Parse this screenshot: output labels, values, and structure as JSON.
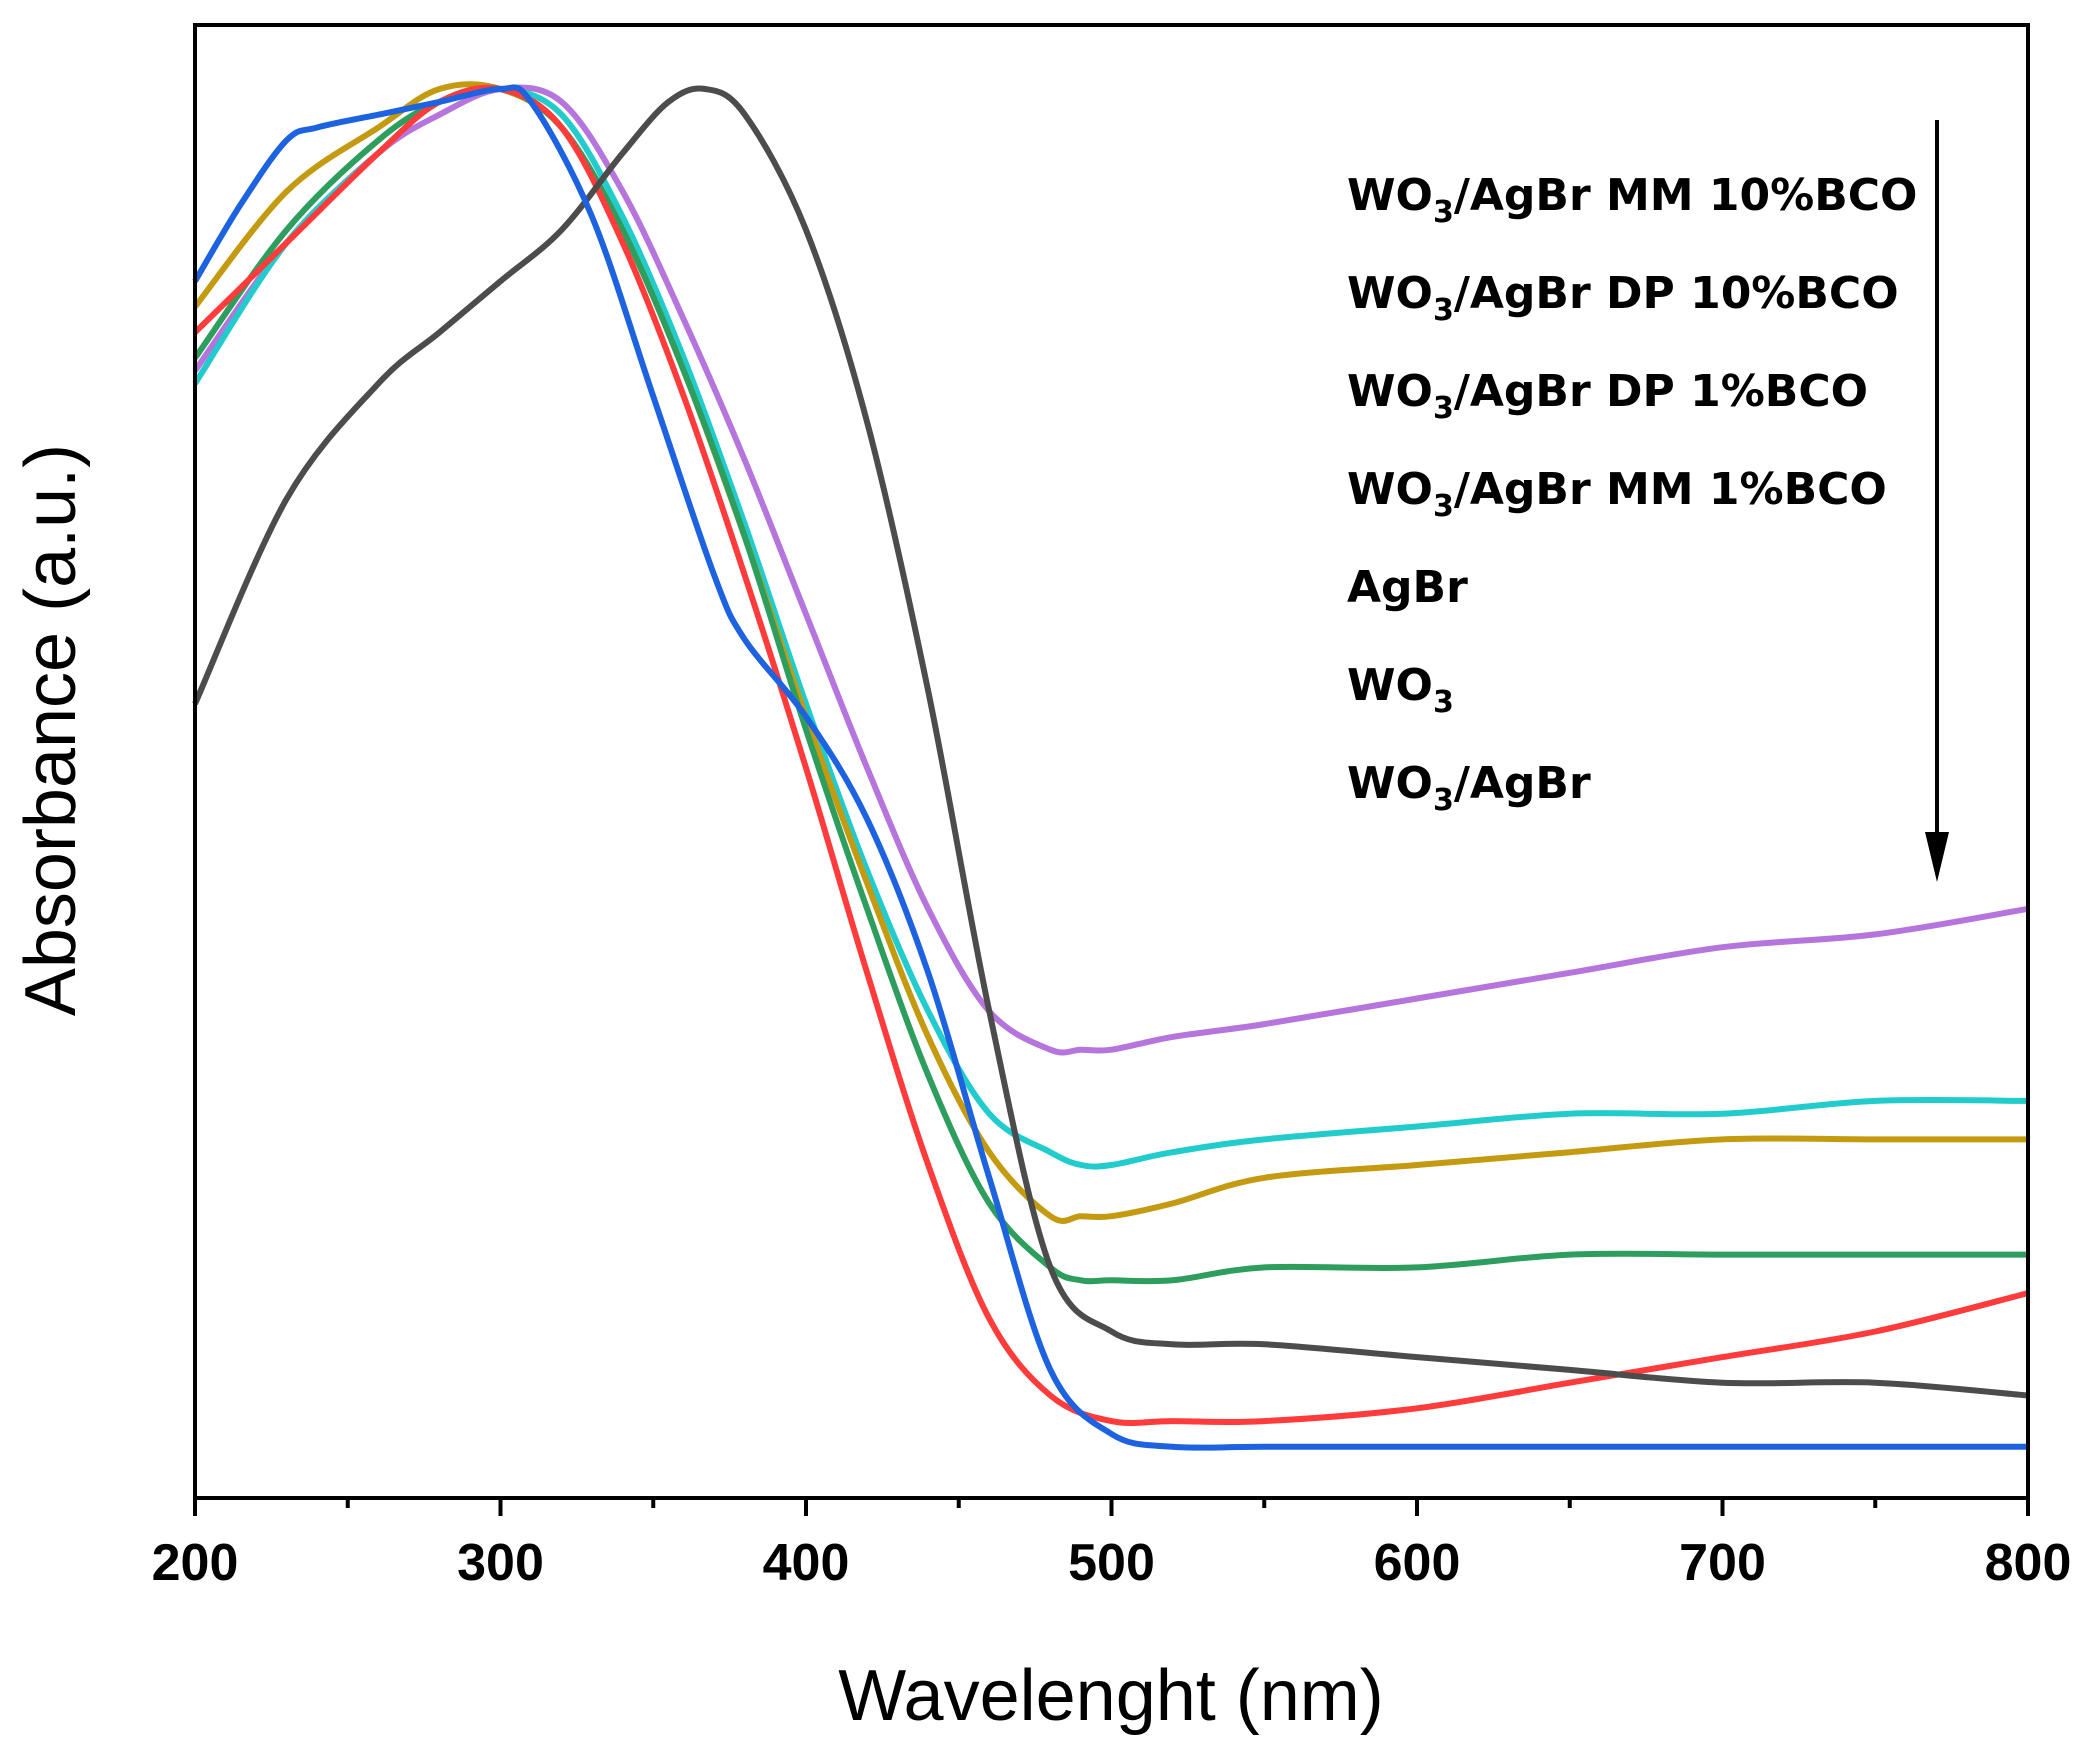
{
  "chart_data": {
    "type": "line",
    "title": "",
    "xlabel": "Wavelenght (nm)",
    "ylabel": "Absorbance (a.u.)",
    "xlim": [
      200,
      800
    ],
    "ylim": [
      0,
      1.15
    ],
    "x_ticks": [
      "200",
      "300",
      "400",
      "500",
      "600",
      "700",
      "800"
    ],
    "y_ticks": [],
    "grid": false,
    "legend_position": "top-right",
    "legend_arrow": "down",
    "legend_entries": [
      {
        "main": "WO",
        "sub": "3",
        "rest": "/AgBr MM 10%BCO"
      },
      {
        "main": "WO",
        "sub": "3",
        "rest": "/AgBr DP 10%BCO"
      },
      {
        "main": "WO",
        "sub": "3",
        "rest": "/AgBr DP 1%BCO"
      },
      {
        "main": "WO",
        "sub": "3",
        "rest": "/AgBr MM 1%BCO"
      },
      {
        "main": "AgBr",
        "sub": "",
        "rest": ""
      },
      {
        "main": "WO",
        "sub": "3",
        "rest": ""
      },
      {
        "main": "WO",
        "sub": "3",
        "rest": "/AgBr"
      }
    ],
    "series": [
      {
        "name": "WO3/AgBr MM 10%BCO",
        "color": "#b575dc",
        "x": [
          200,
          230,
          260,
          280,
          300,
          320,
          340,
          360,
          380,
          400,
          420,
          440,
          460,
          480,
          490,
          500,
          520,
          550,
          600,
          650,
          700,
          750,
          800
        ],
        "y": [
          0.88,
          0.98,
          1.05,
          1.08,
          1.1,
          1.09,
          1.02,
          0.92,
          0.81,
          0.69,
          0.57,
          0.46,
          0.38,
          0.35,
          0.35,
          0.35,
          0.36,
          0.37,
          0.39,
          0.41,
          0.43,
          0.44,
          0.46
        ]
      },
      {
        "name": "WO3/AgBr DP 10%BCO",
        "color": "#22cccc",
        "x": [
          200,
          230,
          260,
          280,
          300,
          320,
          340,
          360,
          380,
          400,
          420,
          440,
          460,
          480,
          490,
          500,
          520,
          550,
          600,
          650,
          700,
          750,
          800
        ],
        "y": [
          0.87,
          0.98,
          1.05,
          1.09,
          1.1,
          1.08,
          1.0,
          0.89,
          0.76,
          0.62,
          0.49,
          0.38,
          0.3,
          0.27,
          0.26,
          0.26,
          0.27,
          0.28,
          0.29,
          0.3,
          0.3,
          0.31,
          0.31
        ]
      },
      {
        "name": "WO3/AgBr DP 1%BCO",
        "color": "#c49a10",
        "x": [
          200,
          230,
          260,
          280,
          300,
          320,
          340,
          360,
          380,
          400,
          420,
          440,
          460,
          480,
          490,
          500,
          520,
          550,
          600,
          650,
          700,
          750,
          800
        ],
        "y": [
          0.93,
          1.02,
          1.07,
          1.1,
          1.1,
          1.07,
          0.99,
          0.88,
          0.75,
          0.61,
          0.48,
          0.36,
          0.27,
          0.22,
          0.22,
          0.22,
          0.23,
          0.25,
          0.26,
          0.27,
          0.28,
          0.28,
          0.28
        ]
      },
      {
        "name": "WO3/AgBr MM 1%BCO",
        "color": "#2e9e5e",
        "x": [
          200,
          230,
          260,
          280,
          300,
          320,
          340,
          360,
          380,
          400,
          420,
          440,
          460,
          480,
          490,
          500,
          520,
          550,
          600,
          650,
          700,
          750,
          800
        ],
        "y": [
          0.89,
          0.99,
          1.06,
          1.09,
          1.1,
          1.07,
          0.99,
          0.88,
          0.75,
          0.6,
          0.46,
          0.33,
          0.23,
          0.18,
          0.17,
          0.17,
          0.17,
          0.18,
          0.18,
          0.19,
          0.19,
          0.19,
          0.19
        ]
      },
      {
        "name": "AgBr",
        "color": "#ff3b3b",
        "x": [
          200,
          230,
          260,
          280,
          300,
          320,
          340,
          360,
          380,
          400,
          420,
          440,
          460,
          480,
          500,
          520,
          550,
          600,
          650,
          700,
          750,
          800
        ],
        "y": [
          0.91,
          0.98,
          1.05,
          1.09,
          1.1,
          1.07,
          0.98,
          0.86,
          0.72,
          0.57,
          0.41,
          0.26,
          0.14,
          0.08,
          0.06,
          0.06,
          0.06,
          0.07,
          0.09,
          0.11,
          0.13,
          0.16
        ]
      },
      {
        "name": "WO3",
        "color": "#4c4c4c",
        "x": [
          200,
          230,
          260,
          280,
          300,
          320,
          340,
          355,
          367,
          380,
          400,
          420,
          440,
          460,
          480,
          500,
          520,
          550,
          600,
          650,
          700,
          750,
          800
        ],
        "y": [
          0.62,
          0.78,
          0.87,
          0.91,
          0.95,
          0.99,
          1.05,
          1.09,
          1.1,
          1.08,
          0.99,
          0.84,
          0.63,
          0.38,
          0.18,
          0.13,
          0.12,
          0.12,
          0.11,
          0.1,
          0.09,
          0.09,
          0.08
        ]
      },
      {
        "name": "WO3/AgBr",
        "color": "#1d63e0",
        "x": [
          200,
          215,
          230,
          240,
          260,
          280,
          300,
          310,
          330,
          350,
          370,
          380,
          400,
          420,
          440,
          460,
          480,
          500,
          520,
          550,
          600,
          650,
          700,
          750,
          800
        ],
        "y": [
          0.95,
          1.01,
          1.06,
          1.07,
          1.08,
          1.09,
          1.1,
          1.09,
          1.0,
          0.86,
          0.72,
          0.67,
          0.61,
          0.53,
          0.41,
          0.25,
          0.1,
          0.05,
          0.04,
          0.04,
          0.04,
          0.04,
          0.04,
          0.04,
          0.04
        ]
      }
    ]
  }
}
